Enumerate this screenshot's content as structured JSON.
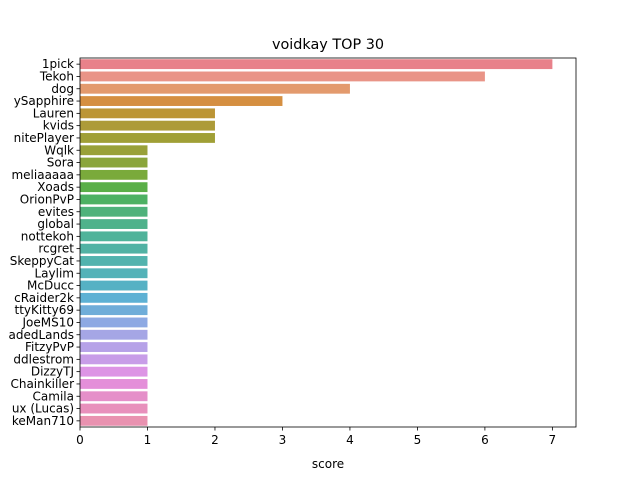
{
  "chart_data": {
    "type": "bar",
    "orientation": "horizontal",
    "title": "voidkay TOP 30",
    "xlabel": "score",
    "ylabel": "",
    "xlim": [
      0,
      7.35
    ],
    "xticks": [
      0,
      1,
      2,
      3,
      4,
      5,
      6,
      7
    ],
    "grid": false,
    "categories": [
      "1pick",
      "Tekoh",
      "dog",
      "ySapphire",
      "Lauren",
      "kvids",
      "nitePlayer",
      "Wqlk",
      "Sora",
      "meliaaaaa",
      "Xoads",
      "OrionPvP",
      "evites",
      "global",
      "nottekoh",
      "rcgret",
      "SkeppyCat",
      "Laylim",
      "McDucc",
      "cRaider2k",
      "ttyKitty69",
      "JoeMS10",
      "adedLands",
      "FitzyPvP",
      "ddlestrom",
      "DizzyTJ",
      "Chainkiller",
      "Camila",
      "ux (Lucas)",
      "keMan710"
    ],
    "values": [
      7,
      6,
      4,
      3,
      2,
      2,
      2,
      1,
      1,
      1,
      1,
      1,
      1,
      1,
      1,
      1,
      1,
      1,
      1,
      1,
      1,
      1,
      1,
      1,
      1,
      1,
      1,
      1,
      1,
      1
    ],
    "colors": [
      "#e8818a",
      "#e99487",
      "#e39a6d",
      "#d58f41",
      "#bc9535",
      "#ad9b38",
      "#a09f36",
      "#99a138",
      "#8aa53a",
      "#7aaa3b",
      "#5aaf48",
      "#4db163",
      "#4fb27b",
      "#4fb28b",
      "#4fb39a",
      "#51b2a4",
      "#52b3ae",
      "#53b2b8",
      "#56b1c4",
      "#5db1d4",
      "#6fadd9",
      "#8da9e3",
      "#a5a6e5",
      "#b6a2e8",
      "#c89de8",
      "#dd94e5",
      "#e48fd9",
      "#e58fc9",
      "#e890bc",
      "#e992b0"
    ]
  }
}
